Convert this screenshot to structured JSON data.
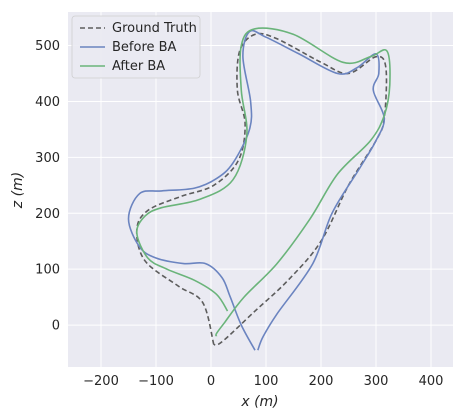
{
  "chart_data": {
    "type": "line",
    "xlabel": "x (m)",
    "ylabel": "z (m)",
    "xlim": [
      -260,
      440
    ],
    "ylim": [
      -75,
      560
    ],
    "xticks": [
      -200,
      -100,
      0,
      100,
      200,
      300,
      400
    ],
    "yticks": [
      0,
      100,
      200,
      300,
      400,
      500
    ],
    "grid": true,
    "legend_position": "top-left",
    "colors": {
      "background": "#eaeaf2",
      "grid": "#ffffff",
      "ground_truth": "#5c5c5c",
      "before_ba": "#6b84c0",
      "after_ba": "#6ab47a"
    },
    "series": [
      {
        "name": "Ground Truth",
        "style": "dashed",
        "x": [
          5,
          -15,
          -60,
          -120,
          -135,
          -115,
          -55,
          5,
          50,
          62,
          48,
          52,
          80,
          120,
          200,
          250,
          300,
          318,
          315,
          300,
          250,
          200,
          140,
          80,
          20,
          5
        ],
        "y": [
          -35,
          40,
          70,
          115,
          170,
          205,
          230,
          250,
          295,
          360,
          420,
          490,
          520,
          512,
          470,
          450,
          480,
          460,
          370,
          330,
          250,
          150,
          80,
          25,
          -30,
          -35
        ]
      },
      {
        "name": "Before BA",
        "style": "solid",
        "x": [
          80,
          55,
          35,
          20,
          -10,
          -50,
          -100,
          -130,
          -150,
          -130,
          -90,
          -30,
          10,
          40,
          70,
          72,
          58,
          70,
          100,
          160,
          230,
          265,
          300,
          305,
          295,
          315,
          300,
          270,
          220,
          185,
          120,
          95,
          85
        ],
        "y": [
          -45,
          0,
          50,
          85,
          110,
          110,
          120,
          140,
          190,
          235,
          240,
          245,
          262,
          290,
          350,
          400,
          480,
          525,
          515,
          485,
          450,
          460,
          485,
          450,
          420,
          370,
          330,
          280,
          200,
          110,
          20,
          -20,
          -45
        ]
      },
      {
        "name": "After BA",
        "style": "solid",
        "x": [
          30,
          10,
          -30,
          -80,
          -115,
          -135,
          -120,
          -90,
          -20,
          40,
          65,
          55,
          55,
          80,
          150,
          240,
          290,
          320,
          325,
          315,
          290,
          230,
          180,
          120,
          60,
          25,
          10,
          10
        ],
        "y": [
          25,
          55,
          80,
          100,
          120,
          165,
          195,
          210,
          225,
          260,
          340,
          420,
          500,
          530,
          520,
          470,
          480,
          490,
          430,
          375,
          330,
          270,
          190,
          110,
          50,
          5,
          -15,
          -20
        ]
      }
    ]
  }
}
